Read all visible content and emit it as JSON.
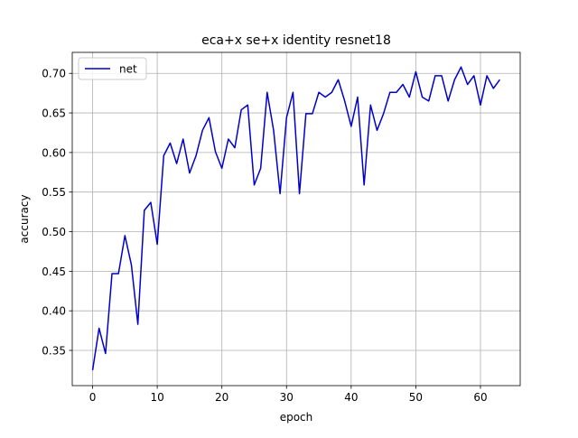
{
  "chart_data": {
    "type": "line",
    "title": "eca+x se+x identity resnet18",
    "xlabel": "epoch",
    "ylabel": "accuracy",
    "xlim": [
      -3.15,
      66.15
    ],
    "ylim": [
      0.3055,
      0.7265
    ],
    "xticks": [
      0,
      10,
      20,
      30,
      40,
      50,
      60
    ],
    "yticks": [
      0.35,
      0.4,
      0.45,
      0.5,
      0.55,
      0.6,
      0.65,
      0.7
    ],
    "ytick_labels": [
      "0.35",
      "0.40",
      "0.45",
      "0.50",
      "0.55",
      "0.60",
      "0.65",
      "0.70"
    ],
    "grid": true,
    "legend_position": "upper left",
    "series": [
      {
        "name": "net",
        "color": "#0000cc",
        "x": [
          0,
          1,
          2,
          3,
          4,
          5,
          6,
          7,
          8,
          9,
          10,
          11,
          12,
          13,
          14,
          15,
          16,
          17,
          18,
          19,
          20,
          21,
          22,
          23,
          24,
          25,
          26,
          27,
          28,
          29,
          30,
          31,
          32,
          33,
          34,
          35,
          36,
          37,
          38,
          39,
          40,
          41,
          42,
          43,
          44,
          45,
          46,
          47,
          48,
          49,
          50,
          51,
          52,
          53,
          54,
          55,
          56,
          57,
          58,
          59,
          60,
          61,
          62,
          63
        ],
        "values": [
          0.325,
          0.378,
          0.346,
          0.447,
          0.447,
          0.495,
          0.458,
          0.383,
          0.527,
          0.537,
          0.484,
          0.596,
          0.612,
          0.586,
          0.617,
          0.574,
          0.596,
          0.628,
          0.644,
          0.601,
          0.58,
          0.617,
          0.606,
          0.654,
          0.66,
          0.559,
          0.58,
          0.676,
          0.628,
          0.548,
          0.644,
          0.676,
          0.548,
          0.649,
          0.649,
          0.676,
          0.67,
          0.676,
          0.692,
          0.665,
          0.633,
          0.67,
          0.559,
          0.66,
          0.628,
          0.649,
          0.676,
          0.676,
          0.686,
          0.67,
          0.702,
          0.67,
          0.665,
          0.697,
          0.697,
          0.665,
          0.692,
          0.708,
          0.686,
          0.697,
          0.66,
          0.697,
          0.681,
          0.692
        ]
      }
    ]
  }
}
